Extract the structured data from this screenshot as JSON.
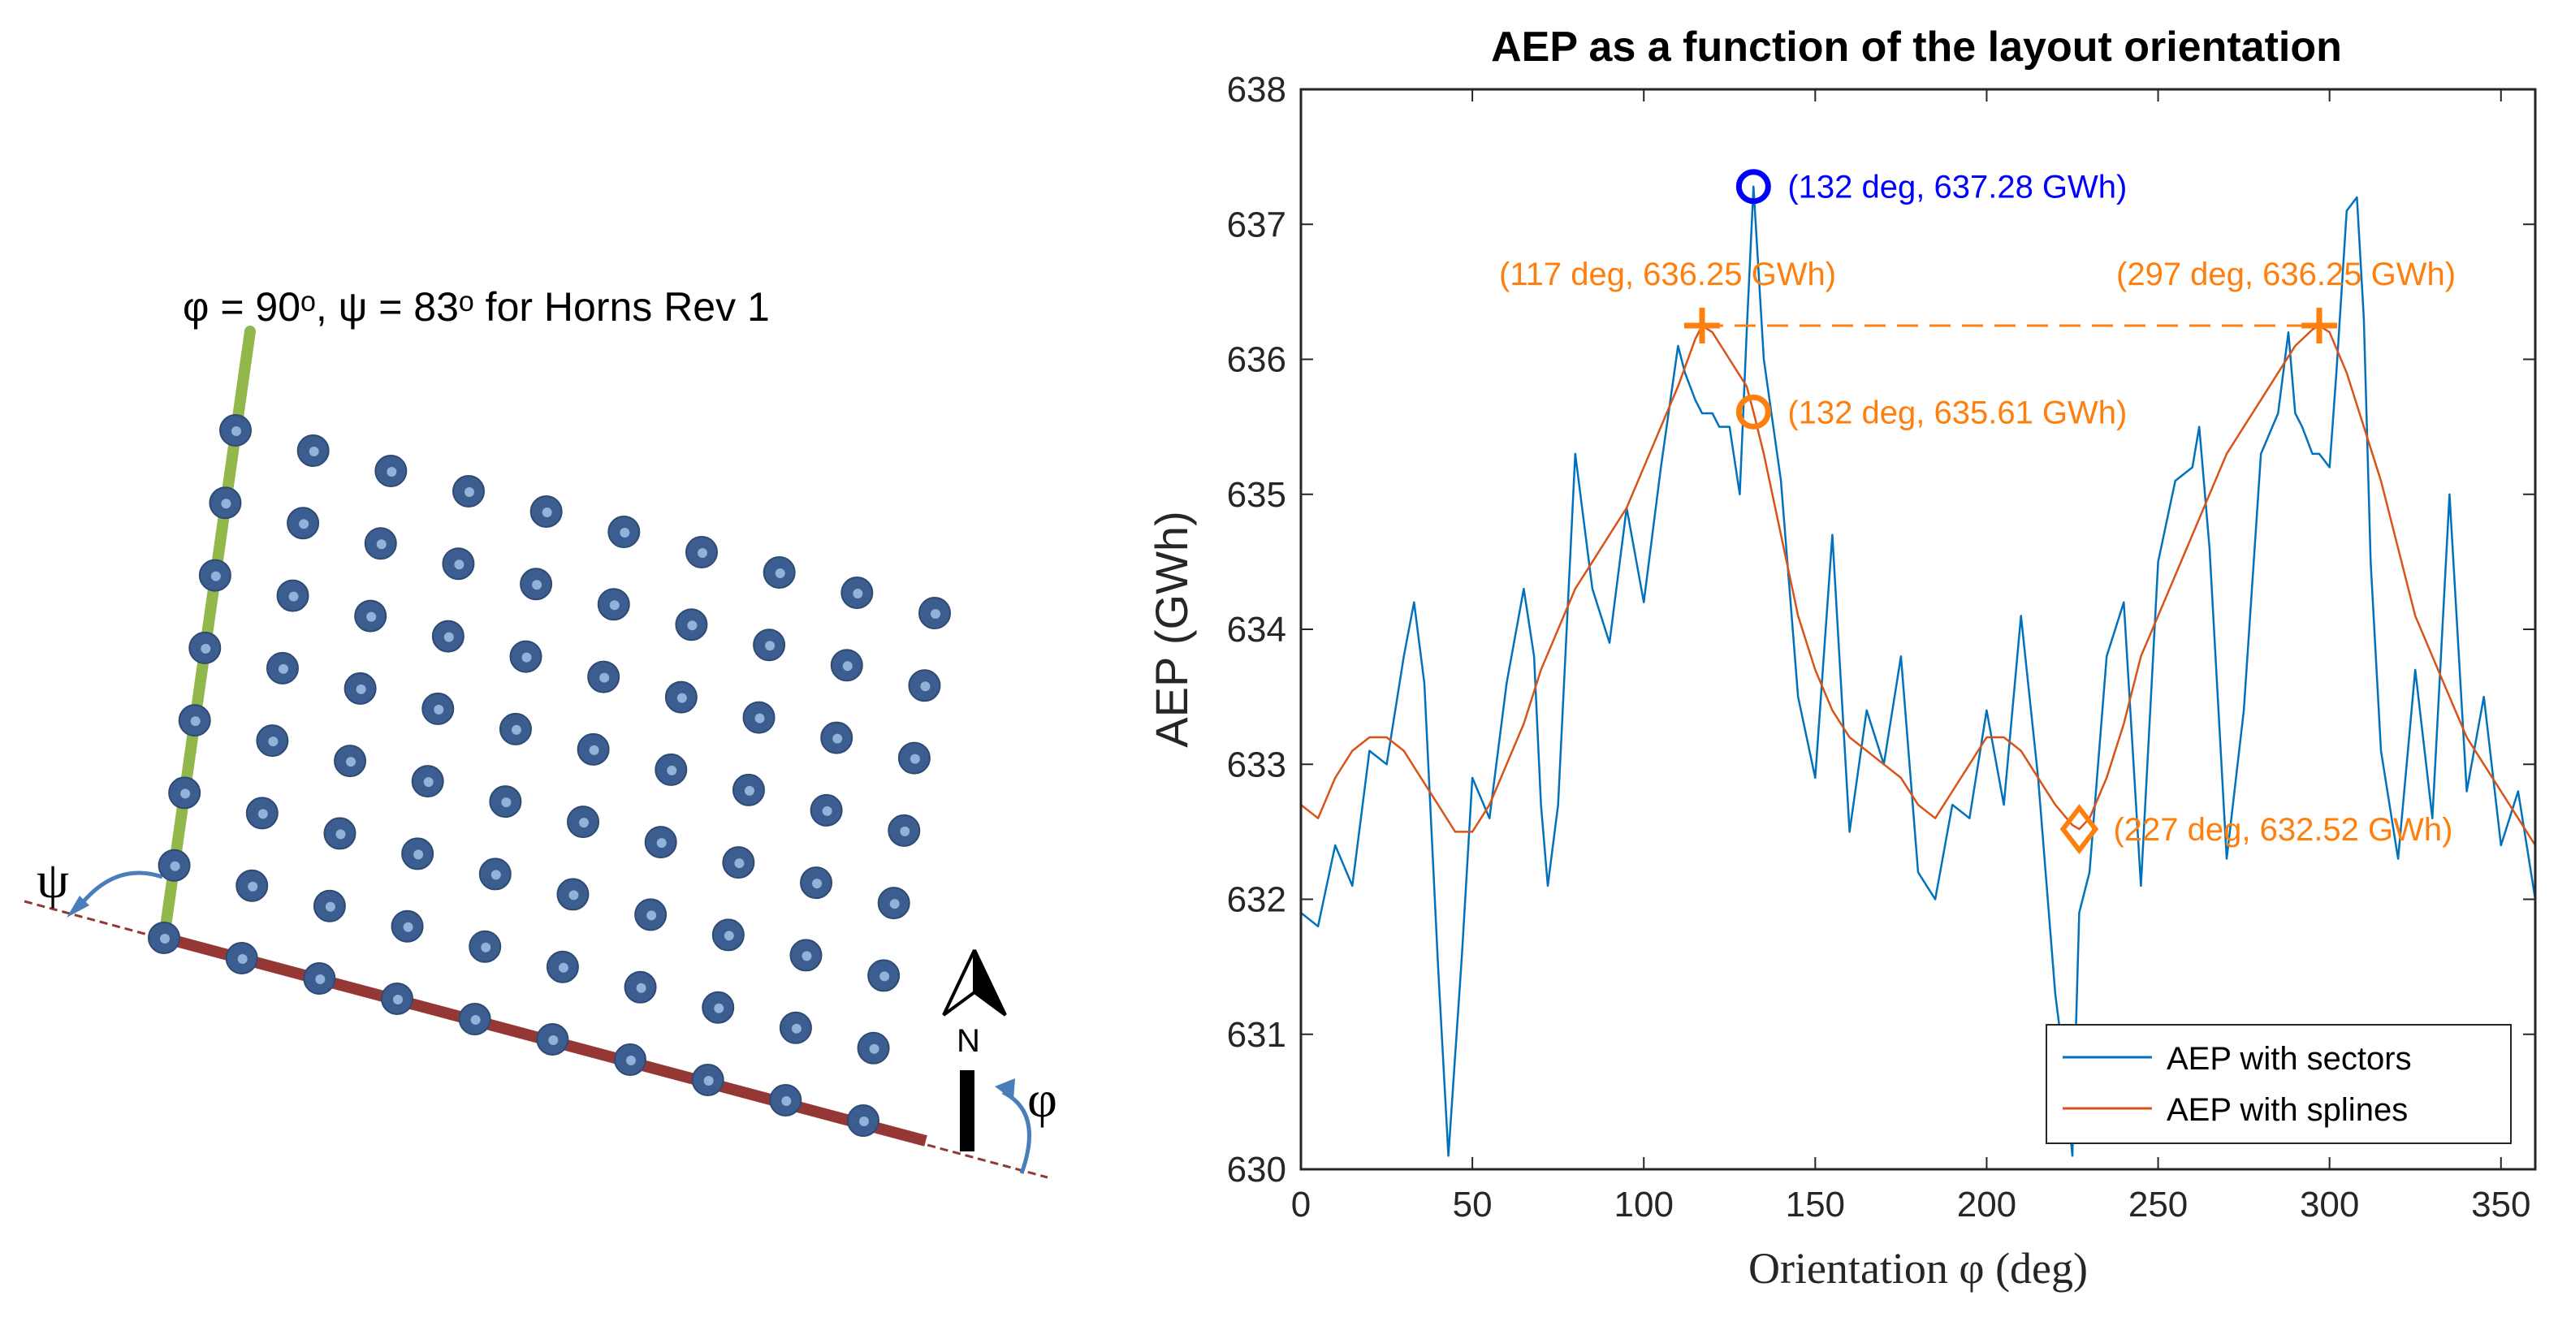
{
  "layout_diagram": {
    "caption": "φ = 90ᵒ, ψ = 83ᵒ for Horns Rev 1",
    "psi_symbol": "ψ",
    "phi_symbol": "φ",
    "north_label": "N",
    "colors": {
      "turbine": "#3c5d8f",
      "turbine_center": "#8fb3d9",
      "green_axis": "#92b84c",
      "red_axis": "#953735",
      "arrow": "#4a7ebb"
    }
  },
  "chart_data": {
    "type": "line",
    "title": "AEP as a function of the layout orientation",
    "xlabel": "Orientation φ (deg)",
    "ylabel": "AEP (GWh)",
    "xlim": [
      0,
      360
    ],
    "ylim": [
      630,
      638
    ],
    "xticks": [
      0,
      50,
      100,
      150,
      200,
      250,
      300,
      350
    ],
    "yticks": [
      630,
      631,
      632,
      633,
      634,
      635,
      636,
      637,
      638
    ],
    "legend_position": "bottom-right",
    "series": [
      {
        "name": "AEP with sectors",
        "color": "#0072bd",
        "x": [
          0,
          5,
          10,
          15,
          20,
          25,
          30,
          33,
          36,
          40,
          43,
          47,
          50,
          55,
          60,
          65,
          68,
          70,
          72,
          75,
          80,
          85,
          90,
          95,
          100,
          105,
          110,
          112,
          115,
          117,
          120,
          122,
          125,
          128,
          130,
          132,
          135,
          140,
          145,
          150,
          155,
          160,
          165,
          170,
          175,
          180,
          185,
          190,
          195,
          200,
          205,
          210,
          215,
          220,
          222,
          225,
          227,
          230,
          235,
          240,
          245,
          250,
          255,
          260,
          262,
          265,
          270,
          275,
          280,
          285,
          288,
          290,
          292,
          295,
          297,
          300,
          302,
          305,
          308,
          310,
          312,
          315,
          320,
          325,
          330,
          335,
          340,
          345,
          350,
          355,
          360
        ],
        "y": [
          631.9,
          631.8,
          632.4,
          632.1,
          633.1,
          633.0,
          633.8,
          634.2,
          633.6,
          631.5,
          630.1,
          631.6,
          632.9,
          632.6,
          633.6,
          634.3,
          633.8,
          632.7,
          632.1,
          632.7,
          635.3,
          634.3,
          633.9,
          634.9,
          634.2,
          635.2,
          636.1,
          635.9,
          635.7,
          635.6,
          635.6,
          635.5,
          635.5,
          635.0,
          636.2,
          637.28,
          636.0,
          635.1,
          633.5,
          632.9,
          634.7,
          632.5,
          633.4,
          633.0,
          633.8,
          632.2,
          632.0,
          632.7,
          632.6,
          633.4,
          632.7,
          634.1,
          632.9,
          631.3,
          630.9,
          630.1,
          631.9,
          632.2,
          633.8,
          634.2,
          632.1,
          634.5,
          635.1,
          635.2,
          635.5,
          634.6,
          632.3,
          633.4,
          635.3,
          635.6,
          636.2,
          635.6,
          635.5,
          635.3,
          635.3,
          635.2,
          635.9,
          637.1,
          637.2,
          636.3,
          634.5,
          633.1,
          632.3,
          633.7,
          632.6,
          635.0,
          632.8,
          633.5,
          632.4,
          632.8,
          632.0
        ]
      },
      {
        "name": "AEP with splines",
        "color": "#d95319",
        "x": [
          0,
          5,
          10,
          15,
          20,
          25,
          30,
          35,
          40,
          45,
          50,
          55,
          60,
          65,
          70,
          75,
          80,
          85,
          90,
          95,
          100,
          105,
          110,
          115,
          117,
          120,
          125,
          130,
          132,
          135,
          140,
          145,
          150,
          155,
          160,
          165,
          170,
          175,
          180,
          185,
          190,
          195,
          200,
          205,
          210,
          215,
          220,
          225,
          227,
          230,
          235,
          240,
          245,
          250,
          255,
          260,
          265,
          270,
          275,
          280,
          285,
          290,
          295,
          297,
          300,
          305,
          310,
          315,
          320,
          325,
          330,
          335,
          340,
          345,
          350,
          355,
          360
        ],
        "y": [
          632.7,
          632.6,
          632.9,
          633.1,
          633.2,
          633.2,
          633.1,
          632.9,
          632.7,
          632.5,
          632.5,
          632.7,
          633.0,
          633.3,
          633.7,
          634.0,
          634.3,
          634.5,
          634.7,
          634.9,
          635.2,
          635.5,
          635.8,
          636.15,
          636.25,
          636.2,
          636.0,
          635.8,
          635.61,
          635.3,
          634.7,
          634.1,
          633.7,
          633.4,
          633.2,
          633.1,
          633.0,
          632.9,
          632.7,
          632.6,
          632.8,
          633.0,
          633.2,
          633.2,
          633.1,
          632.9,
          632.7,
          632.55,
          632.52,
          632.6,
          632.9,
          633.3,
          633.8,
          634.1,
          634.4,
          634.7,
          635.0,
          635.3,
          635.5,
          635.7,
          635.9,
          636.1,
          636.22,
          636.25,
          636.2,
          635.9,
          635.5,
          635.1,
          634.6,
          634.1,
          633.8,
          633.5,
          633.2,
          633.0,
          632.8,
          632.6,
          632.4
        ]
      }
    ],
    "reference_line": {
      "x": [
        117,
        297
      ],
      "y": [
        636.25,
        636.25
      ],
      "color": "#ff7f0e",
      "style": "dashed"
    },
    "annotations": [
      {
        "x": 132,
        "y": 637.28,
        "marker": "circle",
        "color": "#0000ff",
        "text": "(132 deg, 637.28 GWh)"
      },
      {
        "x": 117,
        "y": 636.25,
        "marker": "plus",
        "color": "#ff7f0e",
        "text": "(117 deg, 636.25 GWh)"
      },
      {
        "x": 297,
        "y": 636.25,
        "marker": "plus",
        "color": "#ff7f0e",
        "text": "(297 deg, 636.25 GWh)"
      },
      {
        "x": 132,
        "y": 635.61,
        "marker": "circle",
        "color": "#ff7f0e",
        "text": "(132 deg, 635.61 GWh)"
      },
      {
        "x": 227,
        "y": 632.52,
        "marker": "diamond",
        "color": "#ff7f0e",
        "text": "(227 deg, 632.52 GWh)"
      }
    ]
  }
}
